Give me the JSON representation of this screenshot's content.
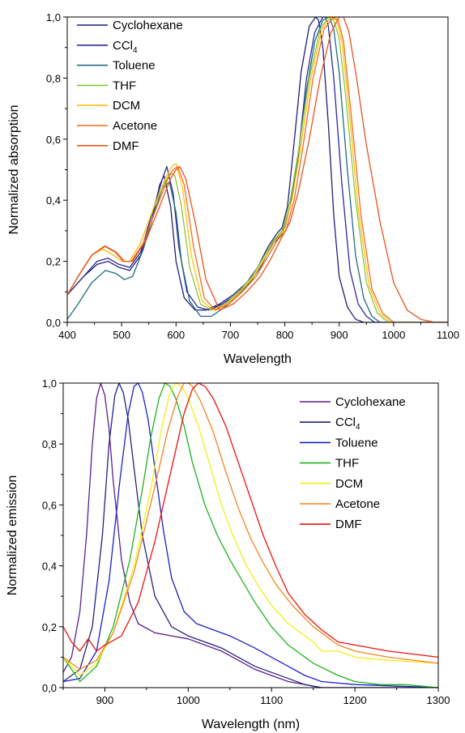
{
  "chart_data": [
    {
      "type": "line",
      "title": "",
      "xlabel": "Wavelength",
      "ylabel": "Normalized absorption",
      "xlim": [
        400,
        1100
      ],
      "ylim": [
        0,
        1.0
      ],
      "x_ticks": [
        "400",
        "500",
        "600",
        "700",
        "800",
        "900",
        "1000",
        "1100"
      ],
      "y_ticks": [
        "0,0",
        "0,2",
        "0,4",
        "0,6",
        "0,8",
        "1,0"
      ],
      "x_tick_values": [
        400,
        500,
        600,
        700,
        800,
        900,
        1000,
        1100
      ],
      "y_tick_values": [
        0,
        0.2,
        0.4,
        0.6,
        0.8,
        1.0
      ],
      "legend": "top-left",
      "grid": false,
      "series": [
        {
          "name": "Cyclohexane",
          "color": "#1f1f7a",
          "x": [
            400,
            430,
            455,
            475,
            495,
            515,
            535,
            555,
            570,
            578,
            590,
            600,
            615,
            635,
            655,
            680,
            705,
            730,
            750,
            770,
            785,
            795,
            805,
            815,
            830,
            845,
            857,
            862,
            870,
            880,
            890,
            900,
            915,
            930,
            945,
            960,
            980,
            1000,
            1100
          ],
          "y": [
            0.09,
            0.15,
            0.19,
            0.2,
            0.18,
            0.17,
            0.22,
            0.33,
            0.45,
            0.48,
            0.38,
            0.2,
            0.08,
            0.04,
            0.04,
            0.06,
            0.09,
            0.13,
            0.18,
            0.25,
            0.29,
            0.31,
            0.38,
            0.55,
            0.82,
            0.97,
            1.0,
            0.99,
            0.9,
            0.65,
            0.35,
            0.15,
            0.05,
            0.01,
            0,
            0,
            0,
            0,
            0
          ]
        },
        {
          "name": "CCl4",
          "color": "#2a2a9a",
          "x": [
            400,
            430,
            455,
            475,
            495,
            515,
            535,
            555,
            575,
            583,
            595,
            605,
            620,
            640,
            660,
            685,
            710,
            735,
            755,
            775,
            790,
            800,
            810,
            825,
            840,
            855,
            870,
            875,
            880,
            890,
            905,
            920,
            935,
            950,
            965,
            985,
            1000,
            1100
          ],
          "y": [
            0.09,
            0.15,
            0.2,
            0.21,
            0.19,
            0.18,
            0.23,
            0.35,
            0.47,
            0.51,
            0.42,
            0.25,
            0.1,
            0.05,
            0.04,
            0.06,
            0.09,
            0.13,
            0.18,
            0.25,
            0.29,
            0.31,
            0.38,
            0.55,
            0.8,
            0.95,
            1.0,
            1.0,
            0.97,
            0.8,
            0.45,
            0.17,
            0.06,
            0.02,
            0,
            0,
            0,
            0
          ]
        },
        {
          "name": "Toluene",
          "color": "#1f6b82",
          "x": [
            400,
            420,
            445,
            470,
            490,
            505,
            520,
            540,
            560,
            575,
            588,
            600,
            610,
            625,
            645,
            665,
            690,
            715,
            740,
            760,
            780,
            795,
            810,
            825,
            840,
            855,
            870,
            882,
            890,
            900,
            915,
            930,
            945,
            960,
            975,
            990,
            1010,
            1100
          ],
          "y": [
            0.01,
            0.06,
            0.13,
            0.17,
            0.16,
            0.14,
            0.15,
            0.24,
            0.36,
            0.44,
            0.46,
            0.36,
            0.2,
            0.07,
            0.02,
            0.02,
            0.05,
            0.09,
            0.14,
            0.2,
            0.26,
            0.29,
            0.38,
            0.55,
            0.76,
            0.92,
            0.99,
            1.0,
            0.96,
            0.82,
            0.5,
            0.22,
            0.08,
            0.02,
            0,
            0,
            0,
            0
          ]
        },
        {
          "name": "THF",
          "color": "#8cc63e",
          "x": [
            400,
            420,
            445,
            465,
            485,
            500,
            515,
            535,
            560,
            580,
            590,
            598,
            610,
            625,
            645,
            665,
            690,
            715,
            740,
            760,
            780,
            795,
            810,
            825,
            845,
            865,
            880,
            890,
            900,
            912,
            930,
            950,
            970,
            990,
            1010,
            1100
          ],
          "y": [
            0.09,
            0.15,
            0.22,
            0.24,
            0.22,
            0.2,
            0.2,
            0.26,
            0.38,
            0.46,
            0.49,
            0.48,
            0.38,
            0.18,
            0.06,
            0.04,
            0.06,
            0.1,
            0.15,
            0.21,
            0.27,
            0.3,
            0.4,
            0.56,
            0.8,
            0.96,
            1.0,
            0.99,
            0.93,
            0.74,
            0.4,
            0.13,
            0.03,
            0,
            0,
            0
          ]
        },
        {
          "name": "DCM",
          "color": "#ffc20e",
          "x": [
            400,
            420,
            445,
            465,
            485,
            500,
            515,
            535,
            560,
            580,
            592,
            600,
            612,
            628,
            648,
            668,
            693,
            718,
            743,
            763,
            783,
            798,
            813,
            828,
            848,
            868,
            885,
            895,
            905,
            918,
            935,
            955,
            975,
            995,
            1015,
            1100
          ],
          "y": [
            0.09,
            0.15,
            0.22,
            0.24,
            0.22,
            0.2,
            0.2,
            0.26,
            0.38,
            0.47,
            0.51,
            0.52,
            0.44,
            0.22,
            0.07,
            0.04,
            0.06,
            0.1,
            0.15,
            0.21,
            0.27,
            0.3,
            0.4,
            0.56,
            0.8,
            0.96,
            1.0,
            0.99,
            0.92,
            0.7,
            0.37,
            0.12,
            0.03,
            0,
            0,
            0
          ]
        },
        {
          "name": "Acetone",
          "color": "#f26b21",
          "x": [
            400,
            420,
            445,
            468,
            488,
            503,
            518,
            540,
            565,
            585,
            595,
            603,
            615,
            632,
            652,
            672,
            697,
            722,
            747,
            767,
            787,
            802,
            817,
            832,
            852,
            872,
            890,
            898,
            908,
            922,
            940,
            960,
            980,
            1000,
            1020,
            1100
          ],
          "y": [
            0.09,
            0.15,
            0.22,
            0.25,
            0.23,
            0.2,
            0.2,
            0.26,
            0.38,
            0.47,
            0.5,
            0.51,
            0.45,
            0.25,
            0.08,
            0.04,
            0.06,
            0.1,
            0.15,
            0.21,
            0.27,
            0.3,
            0.4,
            0.56,
            0.8,
            0.96,
            1.0,
            0.99,
            0.92,
            0.68,
            0.35,
            0.11,
            0.03,
            0,
            0,
            0
          ]
        },
        {
          "name": "DMF",
          "color": "#e8531f",
          "x": [
            400,
            420,
            445,
            470,
            490,
            505,
            520,
            545,
            570,
            590,
            600,
            607,
            618,
            635,
            655,
            680,
            705,
            730,
            755,
            775,
            795,
            810,
            825,
            845,
            865,
            885,
            900,
            908,
            918,
            932,
            950,
            975,
            1000,
            1025,
            1050,
            1075,
            1100
          ],
          "y": [
            0.09,
            0.15,
            0.22,
            0.25,
            0.23,
            0.2,
            0.2,
            0.27,
            0.38,
            0.47,
            0.5,
            0.51,
            0.47,
            0.33,
            0.14,
            0.04,
            0.06,
            0.1,
            0.15,
            0.21,
            0.28,
            0.33,
            0.43,
            0.6,
            0.8,
            0.95,
            1.0,
            1.0,
            0.95,
            0.8,
            0.58,
            0.33,
            0.13,
            0.04,
            0.01,
            0,
            0
          ]
        }
      ]
    },
    {
      "type": "line",
      "title": "",
      "xlabel": "Wavelength (nm)",
      "ylabel": "Normalized emission",
      "xlim": [
        850,
        1300
      ],
      "ylim": [
        0,
        1.0
      ],
      "x_ticks": [
        "900",
        "1000",
        "1100",
        "1200",
        "1300"
      ],
      "y_ticks": [
        "0,0",
        "0,2",
        "0,4",
        "0,6",
        "0,8",
        "1,0"
      ],
      "x_tick_values": [
        900,
        1000,
        1100,
        1200,
        1300
      ],
      "y_tick_values": [
        0,
        0.2,
        0.4,
        0.6,
        0.8,
        1.0
      ],
      "legend": "top-right",
      "grid": false,
      "series": [
        {
          "name": "Cyclohexane",
          "color": "#5b1f8c",
          "x": [
            850,
            860,
            870,
            878,
            885,
            890,
            895,
            900,
            905,
            910,
            920,
            930,
            940,
            960,
            980,
            1000,
            1020,
            1040,
            1060,
            1080,
            1100,
            1120,
            1140,
            1160,
            1200,
            1300
          ],
          "y": [
            0.05,
            0.1,
            0.25,
            0.5,
            0.8,
            0.95,
            1.0,
            0.96,
            0.85,
            0.68,
            0.42,
            0.28,
            0.21,
            0.18,
            0.17,
            0.16,
            0.14,
            0.12,
            0.09,
            0.06,
            0.04,
            0.02,
            0.01,
            0,
            0,
            0
          ]
        },
        {
          "name": "CCl4",
          "color": "#23237e",
          "x": [
            850,
            870,
            885,
            897,
            905,
            912,
            917,
            922,
            928,
            935,
            945,
            960,
            980,
            1000,
            1020,
            1040,
            1060,
            1080,
            1100,
            1120,
            1140,
            1160,
            1200,
            1300
          ],
          "y": [
            0.02,
            0.06,
            0.2,
            0.5,
            0.8,
            0.96,
            1.0,
            0.97,
            0.88,
            0.72,
            0.5,
            0.3,
            0.2,
            0.17,
            0.15,
            0.13,
            0.1,
            0.07,
            0.05,
            0.03,
            0.01,
            0,
            0,
            0
          ]
        },
        {
          "name": "Toluene",
          "color": "#1a22c6",
          "x": [
            850,
            870,
            890,
            905,
            918,
            928,
            935,
            940,
            945,
            952,
            960,
            970,
            980,
            995,
            1010,
            1030,
            1050,
            1080,
            1100,
            1120,
            1140,
            1160,
            1200,
            1300
          ],
          "y": [
            0.02,
            0.03,
            0.12,
            0.35,
            0.68,
            0.9,
            0.99,
            1.0,
            0.97,
            0.88,
            0.72,
            0.52,
            0.36,
            0.25,
            0.21,
            0.19,
            0.17,
            0.13,
            0.1,
            0.07,
            0.04,
            0.02,
            0.01,
            0
          ]
        },
        {
          "name": "THF",
          "color": "#1fb31f",
          "x": [
            850,
            870,
            890,
            910,
            930,
            945,
            955,
            965,
            972,
            978,
            985,
            995,
            1005,
            1020,
            1035,
            1050,
            1065,
            1080,
            1100,
            1120,
            1150,
            1180,
            1200,
            1230,
            1260,
            1300
          ],
          "y": [
            0.1,
            0.02,
            0.07,
            0.2,
            0.42,
            0.65,
            0.82,
            0.95,
            1.0,
            0.99,
            0.95,
            0.86,
            0.74,
            0.6,
            0.5,
            0.42,
            0.35,
            0.28,
            0.2,
            0.14,
            0.08,
            0.04,
            0.02,
            0.01,
            0.01,
            0
          ]
        },
        {
          "name": "DCM",
          "color": "#f0f018",
          "x": [
            850,
            870,
            890,
            910,
            935,
            955,
            968,
            978,
            985,
            992,
            1000,
            1012,
            1025,
            1040,
            1055,
            1070,
            1085,
            1100,
            1120,
            1140,
            1150,
            1160,
            1180,
            1200,
            1240,
            1300
          ],
          "y": [
            0.1,
            0.04,
            0.08,
            0.18,
            0.4,
            0.65,
            0.85,
            0.97,
            1.0,
            0.99,
            0.95,
            0.86,
            0.74,
            0.6,
            0.49,
            0.4,
            0.33,
            0.27,
            0.21,
            0.17,
            0.15,
            0.12,
            0.12,
            0.1,
            0.09,
            0.08
          ]
        },
        {
          "name": "Acetone",
          "color": "#f5841f",
          "x": [
            850,
            870,
            890,
            910,
            935,
            960,
            975,
            988,
            995,
            1000,
            1005,
            1015,
            1030,
            1045,
            1060,
            1075,
            1090,
            1105,
            1125,
            1150,
            1180,
            1200,
            1240,
            1300
          ],
          "y": [
            0.1,
            0.06,
            0.09,
            0.18,
            0.38,
            0.66,
            0.84,
            0.96,
            1.0,
            1.0,
            0.99,
            0.94,
            0.84,
            0.71,
            0.59,
            0.49,
            0.41,
            0.34,
            0.27,
            0.2,
            0.14,
            0.12,
            0.1,
            0.08
          ]
        },
        {
          "name": "DMF",
          "color": "#ee1111",
          "x": [
            850,
            860,
            870,
            880,
            890,
            900,
            920,
            940,
            960,
            980,
            995,
            1005,
            1012,
            1020,
            1030,
            1045,
            1060,
            1075,
            1090,
            1105,
            1120,
            1140,
            1160,
            1180,
            1200,
            1240,
            1300
          ],
          "y": [
            0.2,
            0.15,
            0.12,
            0.16,
            0.12,
            0.14,
            0.17,
            0.28,
            0.48,
            0.72,
            0.9,
            0.98,
            1.0,
            0.99,
            0.95,
            0.86,
            0.74,
            0.62,
            0.5,
            0.4,
            0.31,
            0.24,
            0.19,
            0.15,
            0.14,
            0.12,
            0.1
          ]
        }
      ]
    }
  ]
}
